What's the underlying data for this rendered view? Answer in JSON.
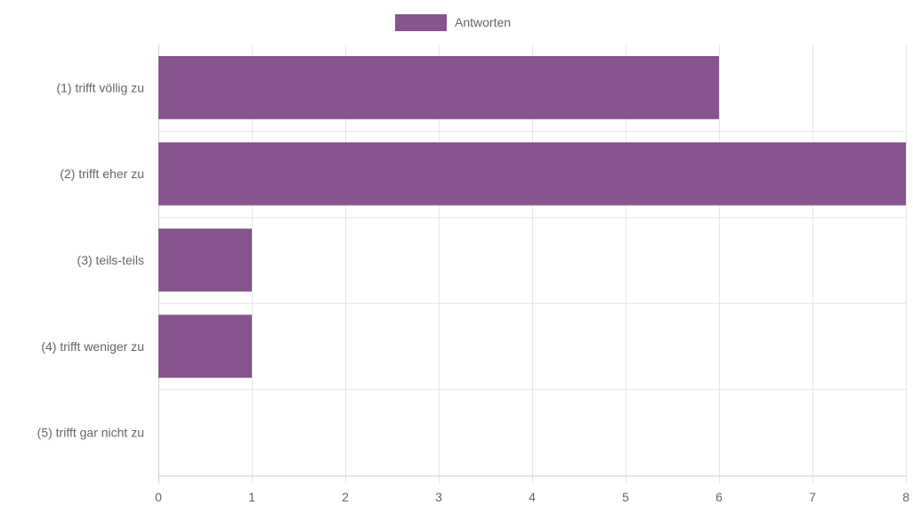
{
  "chart_data": {
    "type": "bar",
    "orientation": "horizontal",
    "categories": [
      "(1) trifft völlig zu",
      "(2) trifft eher zu",
      "(3) teils-teils",
      "(4) trifft weniger zu",
      "(5) trifft gar nicht zu"
    ],
    "series": [
      {
        "name": "Antworten",
        "values": [
          6,
          8,
          1,
          1,
          0
        ],
        "color": "#87548f"
      }
    ],
    "xlim": [
      0,
      8
    ],
    "xticks": [
      0,
      1,
      2,
      3,
      4,
      5,
      6,
      7,
      8
    ],
    "grid": true,
    "legend": "top-center"
  }
}
